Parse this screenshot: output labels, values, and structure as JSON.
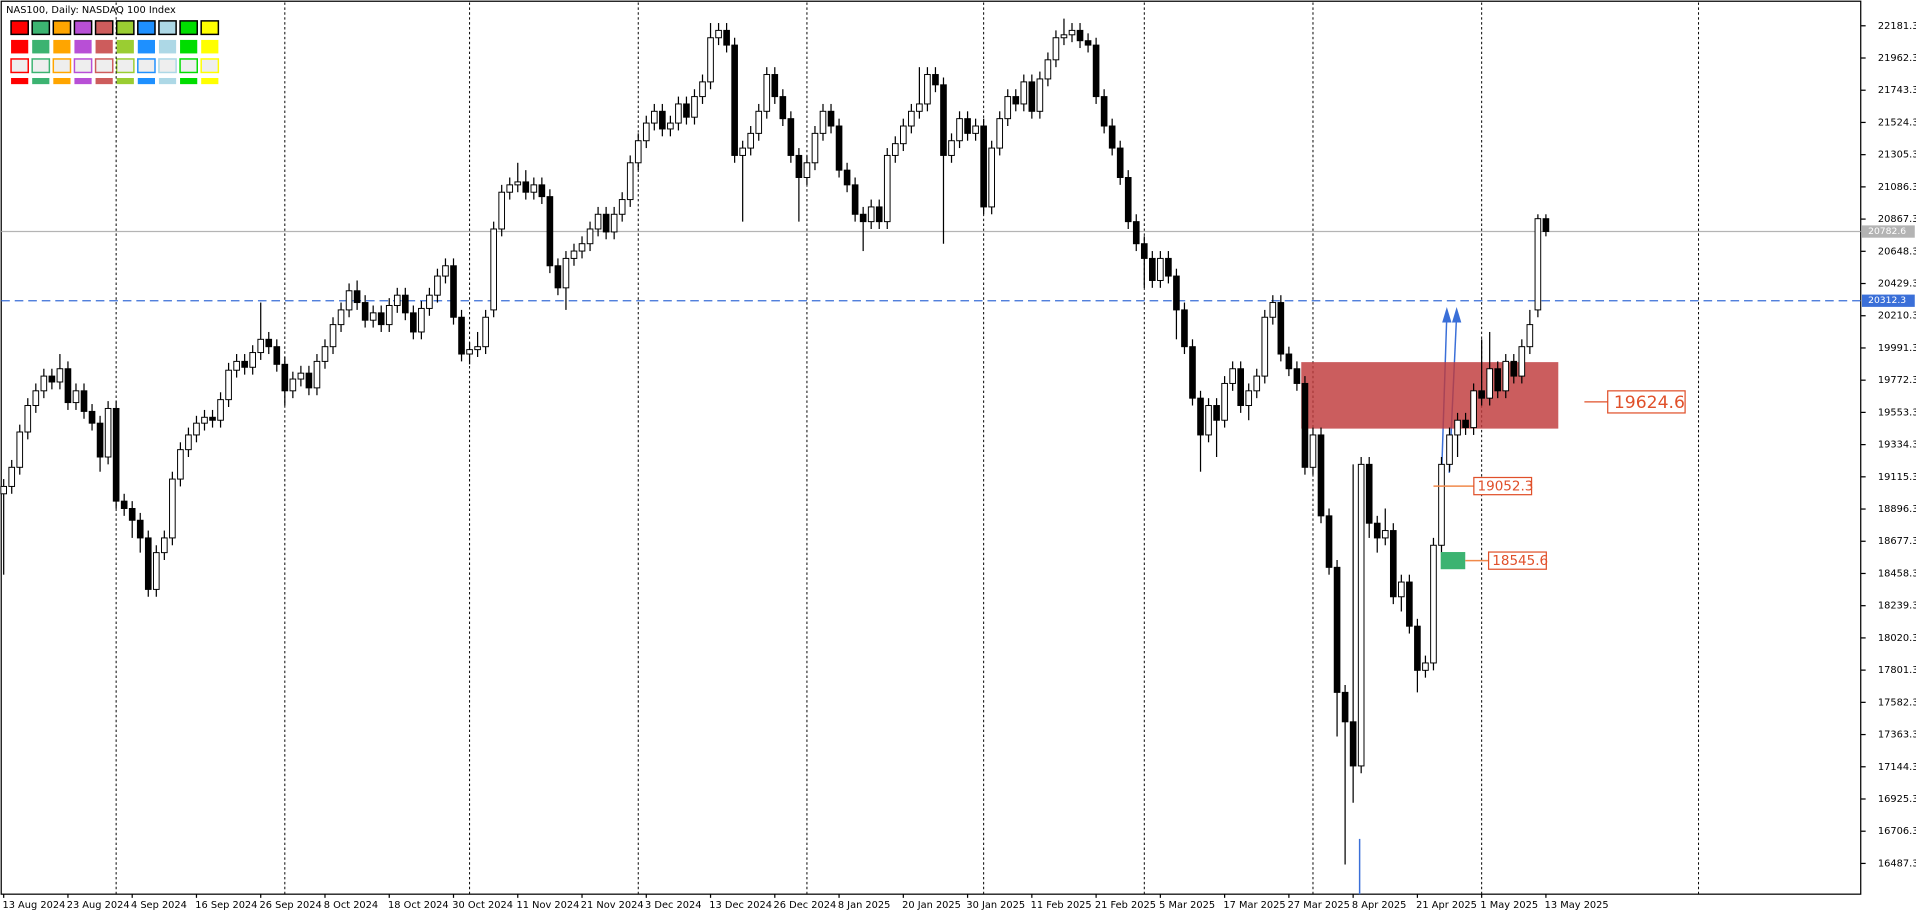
{
  "chart_data": {
    "type": "candlestick",
    "title": "NAS100, Daily: NASDAQ 100 Index",
    "x": [
      "13 Aug 2024",
      null,
      null,
      null,
      null,
      null,
      null,
      null,
      "23 Aug 2024",
      null,
      null,
      null,
      null,
      null,
      null,
      null,
      "4 Sep 2024",
      null,
      null,
      null,
      null,
      null,
      null,
      null,
      "16 Sep 2024",
      null,
      null,
      null,
      null,
      null,
      null,
      null,
      "26 Sep 2024",
      null,
      null,
      null,
      null,
      null,
      null,
      null,
      "8 Oct 2024",
      null,
      null,
      null,
      null,
      null,
      null,
      null,
      "18 Oct 2024",
      null,
      null,
      null,
      null,
      null,
      null,
      null,
      "30 Oct 2024",
      null,
      null,
      null,
      null,
      null,
      null,
      null,
      "11 Nov 2024",
      null,
      null,
      null,
      null,
      null,
      null,
      null,
      "21 Nov 2024",
      null,
      null,
      null,
      null,
      null,
      null,
      null,
      "3 Dec 2024",
      null,
      null,
      null,
      null,
      null,
      null,
      null,
      "13 Dec 2024",
      null,
      null,
      null,
      null,
      null,
      null,
      null,
      "26 Dec 2024",
      null,
      null,
      null,
      null,
      null,
      null,
      null,
      "8 Jan 2025",
      null,
      null,
      null,
      null,
      null,
      null,
      null,
      "20 Jan 2025",
      null,
      null,
      null,
      null,
      null,
      null,
      null,
      "30 Jan 2025",
      null,
      null,
      null,
      null,
      null,
      null,
      null,
      "11 Feb 2025",
      null,
      null,
      null,
      null,
      null,
      null,
      null,
      "21 Feb 2025",
      null,
      null,
      null,
      null,
      null,
      null,
      null,
      "5 Mar 2025",
      null,
      null,
      null,
      null,
      null,
      null,
      null,
      "17 Mar 2025",
      null,
      null,
      null,
      null,
      null,
      null,
      null,
      "27 Mar 2025",
      null,
      null,
      null,
      null,
      null,
      null,
      null,
      "8 Apr 2025",
      null,
      null,
      null,
      null,
      null,
      null,
      null,
      "21 Apr 2025",
      null,
      null,
      null,
      null,
      null,
      null,
      null,
      "1 May 2025",
      null,
      null,
      null,
      null,
      null,
      null,
      null,
      "13 May 2025"
    ],
    "open": [
      19000,
      19050,
      19180,
      19420,
      19600,
      19700,
      19800,
      19760,
      19850,
      19620,
      19700,
      19560,
      19480,
      19250,
      19580,
      18950,
      18900,
      18820,
      18700,
      18350,
      18600,
      18700,
      19100,
      19300,
      19400,
      19480,
      19520,
      19500,
      19640,
      19840,
      19900,
      19860,
      19960,
      20050,
      20000,
      19880,
      19700,
      19780,
      19820,
      19720,
      19900,
      20000,
      20150,
      20250,
      20380,
      20300,
      20180,
      20230,
      20150,
      20280,
      20350,
      20230,
      20100,
      20260,
      20350,
      20480,
      20550,
      20200,
      19950,
      19980,
      20000,
      20250,
      20800,
      21050,
      21100,
      21120,
      21050,
      21100,
      21020,
      20550,
      20400,
      20600,
      20650,
      20700,
      20800,
      20900,
      20780,
      20900,
      21000,
      21250,
      21400,
      21520,
      21600,
      21480,
      21520,
      21650,
      21560,
      21700,
      21800,
      22100,
      22150,
      22050,
      21300,
      21350,
      21450,
      21600,
      21850,
      21700,
      21550,
      21300,
      21150,
      21250,
      21450,
      21600,
      21500,
      21200,
      21100,
      20900,
      20850,
      20950,
      20850,
      21300,
      21380,
      21500,
      21600,
      21650,
      21850,
      21780,
      21300,
      21400,
      21550,
      21450,
      21500,
      20950,
      21350,
      21550,
      21700,
      21650,
      21800,
      21600,
      21820,
      21950,
      22100,
      22120,
      22150,
      22080,
      22050,
      21700,
      21500,
      21350,
      21150,
      20850,
      20700,
      20600,
      20450,
      20600,
      20480,
      20250,
      20000,
      19650,
      19400,
      19600,
      19500,
      19750,
      19850,
      19600,
      19700,
      19800,
      20200,
      20300,
      19950,
      19850,
      19750,
      19180,
      19400,
      18850,
      18500,
      17650,
      17450,
      17150,
      19200,
      18800,
      18700,
      18750,
      18300,
      18400,
      18100,
      17800,
      17850,
      18650,
      19200,
      19400,
      19500,
      19450,
      19700,
      19650,
      19850,
      19700,
      19900,
      19800,
      20000,
      20250,
      20870
    ],
    "high": [
      19100,
      19230,
      19470,
      19650,
      19750,
      19850,
      19850,
      19950,
      19900,
      19750,
      19750,
      19610,
      19530,
      19630,
      19630,
      19000,
      18950,
      18870,
      18750,
      18650,
      18750,
      19150,
      19350,
      19450,
      19530,
      19570,
      19570,
      19690,
      19890,
      19950,
      19950,
      20010,
      20300,
      20100,
      20050,
      19930,
      19830,
      19870,
      19870,
      19950,
      20050,
      20200,
      20300,
      20430,
      20450,
      20350,
      20280,
      20280,
      20330,
      20400,
      20400,
      20280,
      20310,
      20400,
      20530,
      20600,
      20600,
      20250,
      20030,
      20100,
      20250,
      20850,
      21100,
      21150,
      21250,
      21200,
      21150,
      21150,
      21070,
      20600,
      20650,
      20700,
      20750,
      20850,
      20950,
      20950,
      20950,
      21050,
      21300,
      21450,
      21570,
      21650,
      21650,
      21570,
      21700,
      21700,
      21750,
      21850,
      22200,
      22200,
      22200,
      22100,
      21400,
      21500,
      21650,
      21900,
      21900,
      21750,
      21600,
      21350,
      21300,
      21500,
      21650,
      21650,
      21550,
      21250,
      21150,
      20950,
      21000,
      21000,
      21350,
      21430,
      21550,
      21650,
      21900,
      21900,
      21900,
      21830,
      21450,
      21600,
      21600,
      21550,
      21550,
      21400,
      21600,
      21750,
      21750,
      21850,
      21850,
      21870,
      22000,
      22150,
      22230,
      22200,
      22200,
      22130,
      22100,
      21750,
      21550,
      21400,
      21200,
      20900,
      20750,
      20650,
      20650,
      20650,
      20530,
      20300,
      20050,
      19700,
      19650,
      19650,
      19800,
      19900,
      19900,
      19750,
      19850,
      20250,
      20350,
      20350,
      20000,
      19900,
      19800,
      19450,
      19450,
      18900,
      18550,
      17700,
      19200,
      19250,
      19250,
      18850,
      18900,
      18800,
      18450,
      18450,
      18150,
      17900,
      18700,
      19250,
      19450,
      19550,
      19550,
      19750,
      20050,
      20100,
      19900,
      19950,
      19950,
      20050,
      20250,
      20900,
      20900
    ],
    "low": [
      18450,
      19000,
      19130,
      19370,
      19550,
      19650,
      19710,
      19710,
      19570,
      19570,
      19510,
      19430,
      19150,
      19200,
      18900,
      18850,
      18700,
      18600,
      18300,
      18300,
      18550,
      18650,
      19050,
      19250,
      19350,
      19430,
      19450,
      19450,
      19590,
      19790,
      19810,
      19810,
      19910,
      19950,
      19830,
      19600,
      19650,
      19730,
      19670,
      19670,
      19850,
      19950,
      20100,
      20200,
      20250,
      20130,
      20130,
      20100,
      20100,
      20230,
      20180,
      20050,
      20050,
      20210,
      20300,
      20430,
      20150,
      19900,
      19880,
      19930,
      19950,
      20200,
      20750,
      21000,
      21050,
      21000,
      21000,
      20970,
      20500,
      20350,
      20250,
      20550,
      20600,
      20650,
      20750,
      20730,
      20730,
      20850,
      20950,
      21200,
      21350,
      21470,
      21430,
      21430,
      21470,
      21510,
      21510,
      21650,
      21750,
      22050,
      22000,
      21250,
      20850,
      21300,
      21400,
      21550,
      21650,
      21500,
      21250,
      20850,
      21100,
      21200,
      21400,
      21450,
      21150,
      21050,
      20850,
      20650,
      20800,
      20800,
      20800,
      21250,
      21330,
      21450,
      21550,
      21600,
      21730,
      20700,
      21250,
      21350,
      21400,
      21400,
      20900,
      20900,
      21300,
      21500,
      21600,
      21600,
      21550,
      21550,
      21770,
      21900,
      22050,
      22070,
      22030,
      22000,
      21650,
      21450,
      21300,
      21100,
      20800,
      20650,
      20400,
      20400,
      20400,
      20430,
      20050,
      19950,
      19600,
      19150,
      19350,
      19250,
      19450,
      19700,
      19550,
      19500,
      19650,
      19750,
      20150,
      19900,
      19800,
      19700,
      19130,
      19130,
      18800,
      18450,
      17350,
      16480,
      16900,
      17100,
      18700,
      18600,
      18650,
      18250,
      18200,
      18050,
      17650,
      17750,
      17800,
      18600,
      19150,
      19250,
      19400,
      19400,
      19600,
      19600,
      19650,
      19650,
      19750,
      19750,
      19950,
      20200,
      20750
    ],
    "close": [
      19050,
      19180,
      19420,
      19600,
      19700,
      19800,
      19760,
      19850,
      19620,
      19700,
      19560,
      19480,
      19250,
      19580,
      18950,
      18900,
      18820,
      18700,
      18350,
      18600,
      18700,
      19100,
      19300,
      19400,
      19480,
      19520,
      19500,
      19640,
      19840,
      19900,
      19860,
      19960,
      20050,
      20000,
      19880,
      19700,
      19780,
      19820,
      19720,
      19900,
      20000,
      20150,
      20250,
      20380,
      20300,
      20180,
      20230,
      20150,
      20280,
      20350,
      20230,
      20100,
      20260,
      20350,
      20480,
      20550,
      20200,
      19950,
      19980,
      20000,
      20200,
      20800,
      21050,
      21100,
      21120,
      21050,
      21100,
      21020,
      20550,
      20400,
      20600,
      20650,
      20700,
      20800,
      20900,
      20780,
      20900,
      21000,
      21250,
      21400,
      21520,
      21600,
      21480,
      21520,
      21650,
      21560,
      21700,
      21800,
      22100,
      22150,
      22050,
      21300,
      21350,
      21450,
      21600,
      21850,
      21700,
      21550,
      21300,
      21150,
      21250,
      21450,
      21600,
      21500,
      21200,
      21100,
      20900,
      20850,
      20950,
      20850,
      21300,
      21380,
      21500,
      21600,
      21650,
      21850,
      21780,
      21300,
      21400,
      21550,
      21450,
      21500,
      20950,
      21350,
      21550,
      21700,
      21650,
      21800,
      21600,
      21820,
      21950,
      22100,
      22120,
      22150,
      22080,
      22050,
      21700,
      21500,
      21350,
      21150,
      20850,
      20700,
      20600,
      20450,
      20600,
      20480,
      20250,
      20000,
      19650,
      19400,
      19600,
      19500,
      19750,
      19850,
      19600,
      19700,
      19800,
      20200,
      20300,
      19950,
      19850,
      19750,
      19180,
      19400,
      18850,
      18500,
      17650,
      17450,
      17150,
      19200,
      18800,
      18700,
      18750,
      18300,
      18400,
      18100,
      17800,
      17850,
      18650,
      19200,
      19400,
      19500,
      19450,
      19700,
      19650,
      19850,
      19700,
      19900,
      19800,
      20000,
      20150,
      20870,
      20783
    ],
    "up_color": "#ffffff",
    "down_color": "#000000",
    "ylim": [
      16278.3,
      22339.9
    ],
    "yticks": [
      22181.3,
      21962.3,
      21743.3,
      21524.3,
      21305.3,
      21086.3,
      20867.3,
      20648.3,
      20429.3,
      20210.3,
      19991.3,
      19772.3,
      19553.3,
      19334.3,
      19115.3,
      18896.3,
      18677.3,
      18458.3,
      18239.3,
      18020.3,
      17801.3,
      17582.3,
      17363.3,
      17144.3,
      16925.3,
      16706.3,
      16487.3
    ],
    "price_line": {
      "value": 20782.6,
      "color": "#b4b4b4"
    },
    "reference_line": {
      "value": 20312.3,
      "color": "#3a6fd8"
    },
    "zone": {
      "top": 19895,
      "bottom": 19443,
      "label": 19624.6,
      "color": "#c0393b"
    },
    "levels": [
      {
        "value": 19052.3,
        "color": "#f08a4b"
      },
      {
        "value": 18545.6,
        "color": "#3cb371"
      }
    ]
  }
}
